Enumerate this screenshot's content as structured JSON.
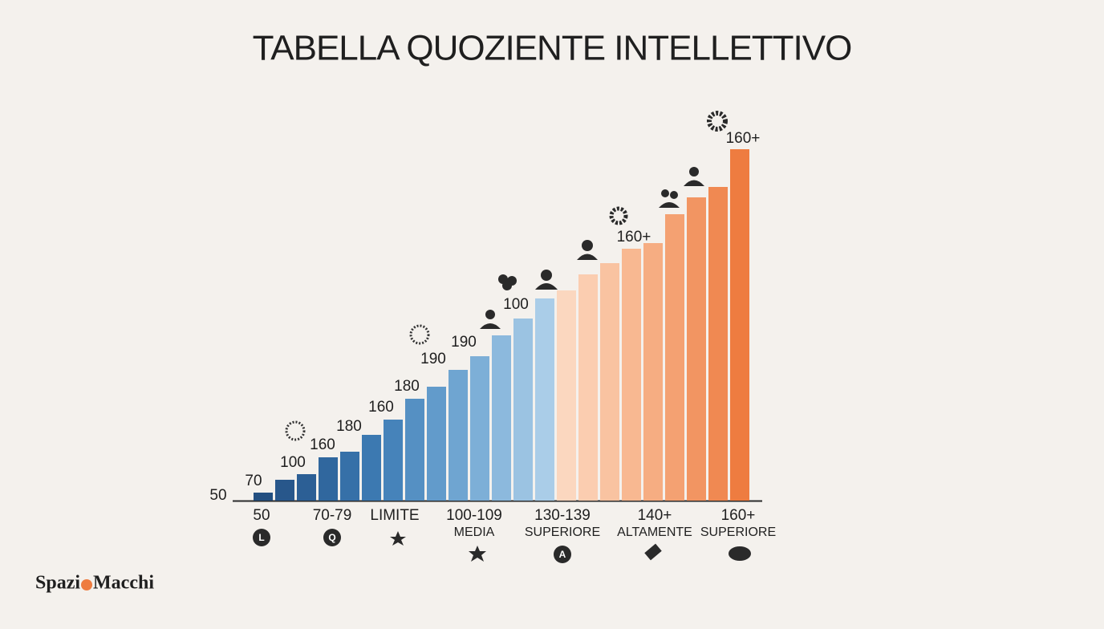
{
  "chart_data": {
    "type": "bar",
    "title": "TABELLA QUOZIENTE INTELLETTIVO",
    "values": [
      10,
      26,
      33,
      54,
      61,
      82,
      101,
      127,
      142,
      163,
      180,
      206,
      227,
      252,
      262,
      282,
      296,
      314,
      321,
      357,
      378,
      391,
      438
    ],
    "colors": [
      "#234f80",
      "#28578b",
      "#2c5f95",
      "#30679e",
      "#3670a8",
      "#3c79b1",
      "#4683ba",
      "#5590c3",
      "#629bcb",
      "#6fa5d1",
      "#7dafd7",
      "#8cb9dd",
      "#9bc3e2",
      "#aacde8",
      "#fbd7bf",
      "#fbcdb0",
      "#f9c3a1",
      "#f8b891",
      "#f6ad82",
      "#f4a172",
      "#f29562",
      "#f08952",
      "#ee7c40"
    ],
    "ylim": [
      0,
      450
    ],
    "annotations": [
      "50",
      "70",
      "100",
      "160",
      "180",
      "160",
      "180",
      "190",
      "190",
      "100",
      "160+",
      "160+"
    ],
    "axis_labels": [
      {
        "text": "50",
        "icon": "L"
      },
      {
        "text": "70-79",
        "icon": "Q"
      },
      {
        "text": "LIMITE"
      },
      {
        "text": "100-109",
        "sub": "MEDIA"
      },
      {
        "text": "130-139",
        "sub": "SUPERIORE",
        "icon": "A"
      },
      {
        "text": "140+",
        "sub": "ALTAMENTE"
      },
      {
        "text": "160+",
        "sub": "SUPERIORE"
      }
    ],
    "brand": [
      "Spazi",
      "Macchi"
    ]
  }
}
